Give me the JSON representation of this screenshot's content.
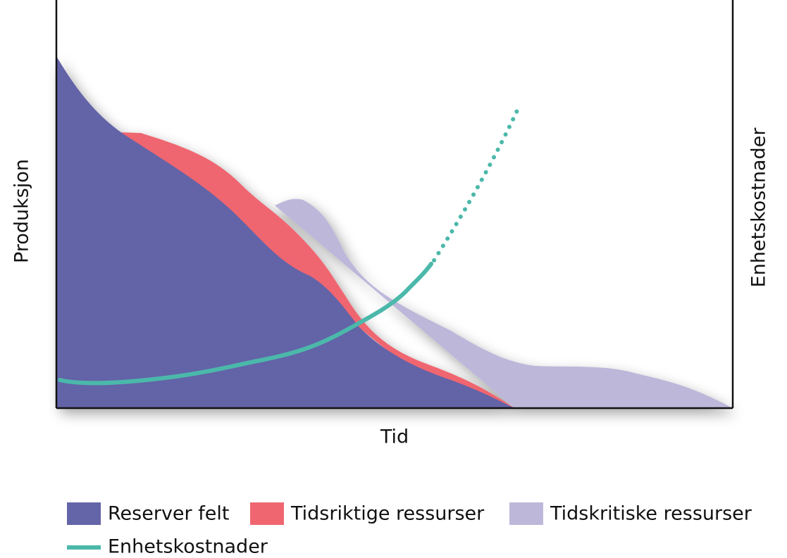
{
  "chart_data": {
    "type": "area",
    "xlabel": "Tid",
    "ylabel": "Produksjon",
    "y2label": "Enhetskostnader",
    "series": [
      {
        "name": "Reserver felt",
        "color": "#6464a8"
      },
      {
        "name": "Tidsriktige ressurser",
        "color": "#ef6670"
      },
      {
        "name": "Tidskritiske ressurser",
        "color": "#bdb8da"
      },
      {
        "name": "Enhetskostnader",
        "color": "#4bb8aa"
      }
    ]
  }
}
